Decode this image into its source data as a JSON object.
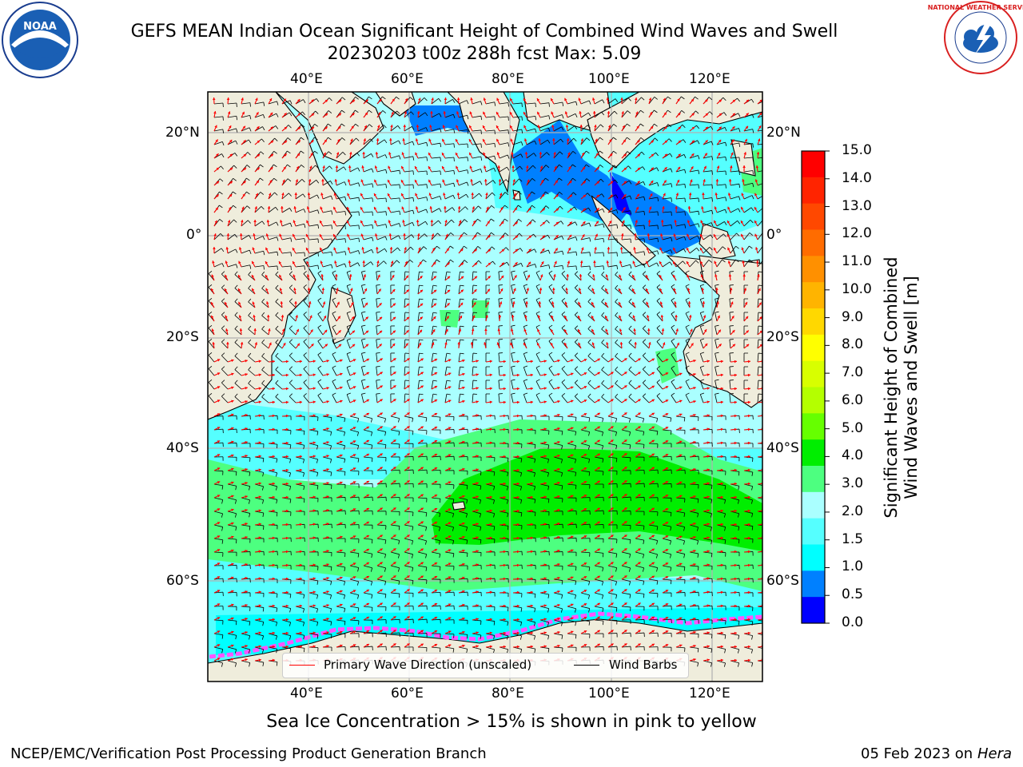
{
  "title": "GEFS MEAN Indian Ocean Significant Height of Combined Wind Waves and Swell",
  "subtitle": "20230203 t00z 288h fcst   Max: 5.09",
  "logos": {
    "left": "NOAA",
    "right": "NATIONAL WEATHER SERVICE"
  },
  "axes": {
    "lon_ticks_top": [
      "40°E",
      "60°E",
      "80°E",
      "100°E",
      "120°E"
    ],
    "lon_ticks_bottom": [
      "40°E",
      "60°E",
      "80°E",
      "100°E",
      "120°E"
    ],
    "lat_ticks_left": [
      "20°N",
      "0°",
      "20°S",
      "40°S",
      "60°S"
    ],
    "lat_ticks_right": [
      "20°N",
      "0°",
      "20°S",
      "40°S",
      "60°S"
    ]
  },
  "legend": {
    "wave": "Primary Wave Direction (unscaled)",
    "wind": "Wind Barbs",
    "wave_color": "#ff0000",
    "wind_color": "#000000"
  },
  "colorbar": {
    "title_line1": "Significant Height of Combined",
    "title_line2": "Wind Waves and Swell [m]",
    "labels": [
      "15.0",
      "14.0",
      "13.0",
      "12.0",
      "11.0",
      "10.0",
      "9.0",
      "8.0",
      "7.0",
      "6.0",
      "5.0",
      "4.0",
      "3.0",
      "2.0",
      "1.5",
      "1.0",
      "0.5",
      "0.0"
    ],
    "colors": [
      "#ff0000",
      "#ff2400",
      "#ff4800",
      "#ff6c00",
      "#ff9000",
      "#ffb400",
      "#ffd800",
      "#ffff00",
      "#d8ff00",
      "#b4ff00",
      "#66ff00",
      "#00ee00",
      "#4dff80",
      "#aaffff",
      "#55ffff",
      "#00ffff",
      "#0080ff",
      "#0000ff"
    ]
  },
  "map_colors": {
    "land": "#efeddc",
    "h_0_5": "#0000ff",
    "h_1_0": "#0080ff",
    "h_1_5": "#00ffff",
    "h_2_0": "#55ffff",
    "h_3_0": "#aaffff",
    "h_4_0": "#4dff80",
    "h_5_0": "#00ee00",
    "h_6_0": "#66ff00",
    "sea_ice": "#ff55ff"
  },
  "caption": "Sea Ice Concentration > 15% is shown in pink to yellow",
  "footer_left": "NCEP/EMC/Verification Post Processing Product Generation Branch",
  "footer_date": "05 Feb 2023 on",
  "footer_host": "Hera"
}
